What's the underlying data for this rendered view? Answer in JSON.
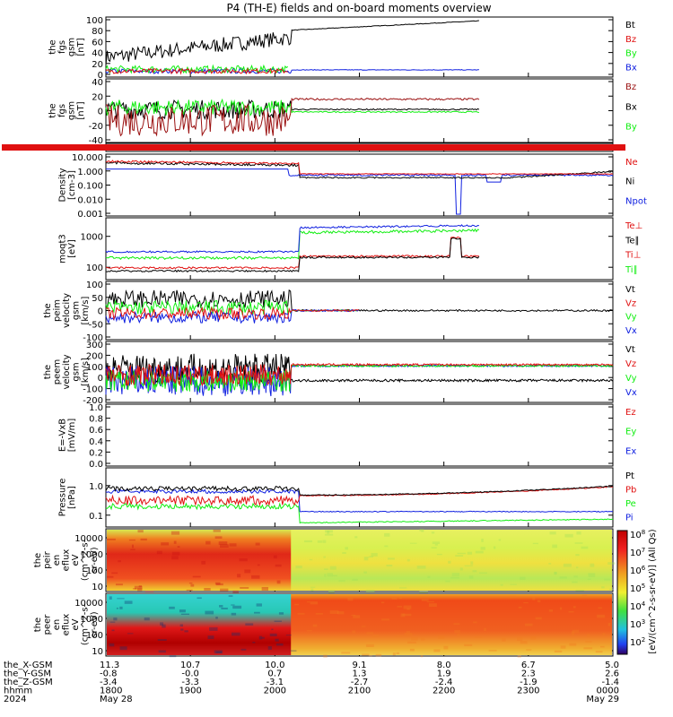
{
  "title": "P4 (TH-E) fields and on-board moments overview",
  "colors": {
    "black": "#000000",
    "red": "#e01010",
    "green": "#10ee10",
    "blue": "#1020e0",
    "dred": "#9a1010"
  },
  "chart_data": [
    {
      "type": "line",
      "panel": "fgs-gsm-bt",
      "ylabel": [
        "the",
        "fgs",
        "gsm",
        "[nT]"
      ],
      "yticks": [
        "100",
        "80",
        "60",
        "40",
        "20",
        "0"
      ],
      "ylim": [
        0,
        100
      ],
      "series": [
        {
          "name": "Bt",
          "color": "black"
        },
        {
          "name": "Bz",
          "color": "red"
        },
        {
          "name": "By",
          "color": "green"
        },
        {
          "name": "Bx",
          "color": "blue"
        }
      ]
    },
    {
      "type": "line",
      "panel": "fgs-gsm-bxyz",
      "ylabel": [
        "the",
        "fgs",
        "gsm",
        "[nT]"
      ],
      "yticks": [
        "40",
        "20",
        "0",
        "-20",
        "-40"
      ],
      "ylim": [
        -50,
        50
      ],
      "series": [
        {
          "name": "Bz",
          "color": "dred"
        },
        {
          "name": "Bx",
          "color": "black"
        },
        {
          "name": "By",
          "color": "green"
        }
      ]
    },
    {
      "type": "bar",
      "panel": "flag-bar",
      "series": [
        {
          "color": "red"
        }
      ]
    },
    {
      "type": "line",
      "panel": "density",
      "ylabel": [
        "Density",
        "[cm-3]"
      ],
      "yticks": [
        "10.000",
        "1.000",
        "0.100",
        "0.010",
        "0.001"
      ],
      "scale": "log",
      "series": [
        {
          "name": "Ne",
          "color": "red"
        },
        {
          "name": "Ni",
          "color": "black"
        },
        {
          "name": "Npot",
          "color": "blue"
        }
      ]
    },
    {
      "type": "line",
      "panel": "temperature",
      "ylabel": [
        "moqt3",
        "[eV]"
      ],
      "yticks": [
        "1000",
        "100"
      ],
      "scale": "log",
      "series": [
        {
          "name": "Te⊥",
          "color": "red"
        },
        {
          "name": "Te∥",
          "color": "black"
        },
        {
          "name": "Ti⊥",
          "color": "red"
        },
        {
          "name": "Ti∥",
          "color": "green"
        }
      ]
    },
    {
      "type": "line",
      "panel": "peim-velocity",
      "ylabel": [
        "the",
        "peim",
        "velocity",
        "gsm",
        "[km/s]"
      ],
      "yticks": [
        "100",
        "50",
        "0",
        "-50",
        "-100"
      ],
      "ylim": [
        -100,
        100
      ],
      "series": [
        {
          "name": "Vt",
          "color": "black"
        },
        {
          "name": "Vz",
          "color": "red"
        },
        {
          "name": "Vy",
          "color": "green"
        },
        {
          "name": "Vx",
          "color": "blue"
        }
      ]
    },
    {
      "type": "line",
      "panel": "peem-velocity",
      "ylabel": [
        "the",
        "peem",
        "velocity",
        "gsm",
        "[km/s]"
      ],
      "yticks": [
        "300",
        "200",
        "100",
        "0",
        "-100",
        "-200"
      ],
      "ylim": [
        -250,
        300
      ],
      "series": [
        {
          "name": "Vt",
          "color": "black"
        },
        {
          "name": "Vz",
          "color": "red"
        },
        {
          "name": "Vy",
          "color": "green"
        },
        {
          "name": "Vx",
          "color": "blue"
        }
      ]
    },
    {
      "type": "line",
      "panel": "efield",
      "ylabel": [
        "E=-VxB",
        "[mV/m]"
      ],
      "yticks": [
        "1.0",
        "0.8",
        "0.6",
        "0.4",
        "0.2",
        "0.0"
      ],
      "ylim": [
        0,
        1
      ],
      "series": [
        {
          "name": "Ez",
          "color": "red"
        },
        {
          "name": "Ey",
          "color": "green"
        },
        {
          "name": "Ex",
          "color": "blue"
        }
      ]
    },
    {
      "type": "line",
      "panel": "pressure",
      "ylabel": [
        "Pressure",
        "[nPa]"
      ],
      "yticks": [
        "1.0",
        "0.1"
      ],
      "scale": "log",
      "series": [
        {
          "name": "Pt",
          "color": "black"
        },
        {
          "name": "Pb",
          "color": "red"
        },
        {
          "name": "Pe",
          "color": "green"
        },
        {
          "name": "Pi",
          "color": "blue"
        }
      ]
    },
    {
      "type": "heatmap",
      "panel": "peir-spectrogram",
      "ylabel": [
        "the",
        "peir",
        "en",
        "eflux",
        "eV",
        "(cm^2-s-",
        "sr-eV)"
      ],
      "yticks": [
        "10000",
        "1000",
        "100",
        "10"
      ]
    },
    {
      "type": "heatmap",
      "panel": "peer-spectrogram",
      "ylabel": [
        "the",
        "peer",
        "en",
        "eflux",
        "eV",
        "(cm^2-s-",
        "sr-eV)"
      ],
      "yticks": [
        "10000",
        "1000",
        "100",
        "10"
      ]
    }
  ],
  "colorbar": {
    "ticks": [
      "10^8",
      "10^7",
      "10^6",
      "10^5",
      "10^4",
      "10^3",
      "10^2"
    ],
    "label": "[eV/(cm^2-s-sr-eV)] (All Qs)"
  },
  "xaxis": {
    "row_labels": [
      "the_X-GSM",
      "the_Y-GSM",
      "the_Z-GSM",
      "hhmm",
      "2024"
    ],
    "columns": [
      {
        "vals": [
          "11.3",
          "-0.8",
          "-3.4",
          "1800",
          "May 28"
        ]
      },
      {
        "vals": [
          "10.7",
          "-0.0",
          "-3.3",
          "1900",
          ""
        ]
      },
      {
        "vals": [
          "10.0",
          "0.7",
          "-3.1",
          "2000",
          ""
        ]
      },
      {
        "vals": [
          "9.1",
          "1.3",
          "-2.7",
          "2100",
          ""
        ]
      },
      {
        "vals": [
          "8.0",
          "1.9",
          "-2.4",
          "2200",
          ""
        ]
      },
      {
        "vals": [
          "6.7",
          "2.3",
          "-1.9",
          "2300",
          ""
        ]
      },
      {
        "vals": [
          "5.0",
          "2.6",
          "-1.4",
          "0000",
          "May 29"
        ]
      }
    ]
  }
}
